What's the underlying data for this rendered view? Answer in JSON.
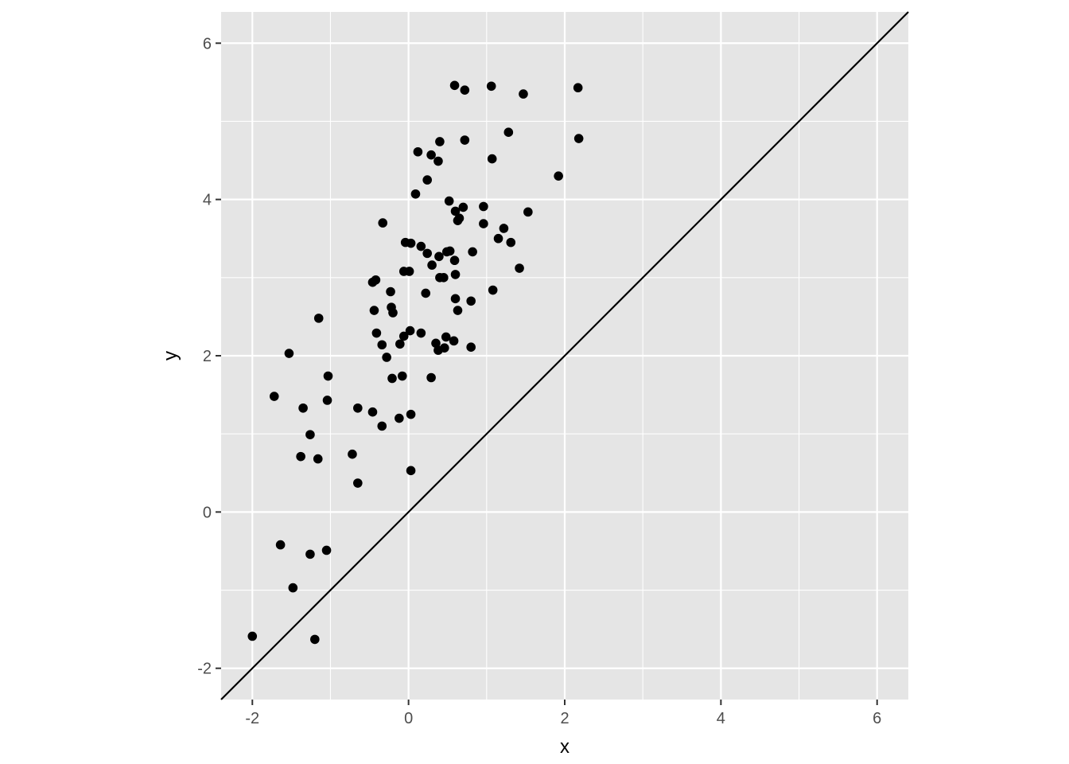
{
  "chart_data": {
    "type": "scatter",
    "title": "",
    "xlabel": "x",
    "ylabel": "y",
    "xlim": [
      -2.4,
      6.4
    ],
    "ylim": [
      -2.4,
      6.4
    ],
    "x_ticks": [
      -2,
      0,
      2,
      4,
      6
    ],
    "y_ticks": [
      -2,
      0,
      2,
      4,
      6
    ],
    "x_tick_labels": [
      "-2",
      "0",
      "2",
      "4",
      "6"
    ],
    "y_tick_labels": [
      "-2",
      "0",
      "2",
      "4",
      "6"
    ],
    "grid": true,
    "legend": "none",
    "colors": {
      "panel": "#e5e5e5",
      "grid": "#ffffff",
      "points": "#000000",
      "line": "#000000",
      "tick_text": "#4d4d4d"
    },
    "reference_line": {
      "type": "abline",
      "slope": 1,
      "intercept": 0
    },
    "points": [
      [
        -2.0,
        -1.59
      ],
      [
        -1.2,
        -1.63
      ],
      [
        -1.48,
        -0.97
      ],
      [
        -1.64,
        -0.42
      ],
      [
        -1.26,
        -0.54
      ],
      [
        -1.05,
        -0.49
      ],
      [
        -1.72,
        1.48
      ],
      [
        -1.35,
        1.33
      ],
      [
        -1.53,
        2.03
      ],
      [
        -1.15,
        2.48
      ],
      [
        -1.26,
        0.99
      ],
      [
        -1.38,
        0.71
      ],
      [
        -1.16,
        0.68
      ],
      [
        -1.04,
        1.43
      ],
      [
        -1.03,
        1.74
      ],
      [
        -0.72,
        0.74
      ],
      [
        -0.65,
        0.37
      ],
      [
        -0.65,
        1.33
      ],
      [
        -0.46,
        1.28
      ],
      [
        -0.34,
        1.1
      ],
      [
        -0.44,
        2.58
      ],
      [
        -0.41,
        2.29
      ],
      [
        -0.34,
        2.14
      ],
      [
        -0.28,
        1.98
      ],
      [
        -0.21,
        1.71
      ],
      [
        -0.22,
        2.62
      ],
      [
        -0.2,
        2.55
      ],
      [
        -0.23,
        2.82
      ],
      [
        -0.46,
        2.94
      ],
      [
        -0.42,
        2.97
      ],
      [
        -0.33,
        3.7
      ],
      [
        -0.12,
        1.2
      ],
      [
        -0.11,
        2.15
      ],
      [
        -0.08,
        1.74
      ],
      [
        -0.06,
        2.25
      ],
      [
        0.02,
        2.32
      ],
      [
        0.03,
        1.25
      ],
      [
        0.03,
        0.53
      ],
      [
        -0.06,
        3.08
      ],
      [
        0.01,
        3.08
      ],
      [
        -0.04,
        3.45
      ],
      [
        0.03,
        3.44
      ],
      [
        0.16,
        3.4
      ],
      [
        0.24,
        3.31
      ],
      [
        0.3,
        3.16
      ],
      [
        0.22,
        2.8
      ],
      [
        0.16,
        2.29
      ],
      [
        0.29,
        1.72
      ],
      [
        0.35,
        2.16
      ],
      [
        0.38,
        2.07
      ],
      [
        0.46,
        2.1
      ],
      [
        0.48,
        2.24
      ],
      [
        0.58,
        2.19
      ],
      [
        0.8,
        2.11
      ],
      [
        0.39,
        3.27
      ],
      [
        0.49,
        3.33
      ],
      [
        0.53,
        3.34
      ],
      [
        0.4,
        3.0
      ],
      [
        0.45,
        3.0
      ],
      [
        0.59,
        3.22
      ],
      [
        0.6,
        3.04
      ],
      [
        0.6,
        2.73
      ],
      [
        0.63,
        2.58
      ],
      [
        0.8,
        2.7
      ],
      [
        0.82,
        3.33
      ],
      [
        0.96,
        3.69
      ],
      [
        0.96,
        3.91
      ],
      [
        0.7,
        3.9
      ],
      [
        0.6,
        3.85
      ],
      [
        0.63,
        3.73
      ],
      [
        0.65,
        3.76
      ],
      [
        0.52,
        3.98
      ],
      [
        0.09,
        4.07
      ],
      [
        0.24,
        4.25
      ],
      [
        0.29,
        4.57
      ],
      [
        0.38,
        4.49
      ],
      [
        0.12,
        4.61
      ],
      [
        0.4,
        4.74
      ],
      [
        0.72,
        4.76
      ],
      [
        0.59,
        5.46
      ],
      [
        0.72,
        5.4
      ],
      [
        1.06,
        5.45
      ],
      [
        1.47,
        5.35
      ],
      [
        1.07,
        4.52
      ],
      [
        1.28,
        4.86
      ],
      [
        1.08,
        2.84
      ],
      [
        1.15,
        3.5
      ],
      [
        1.22,
        3.63
      ],
      [
        1.31,
        3.45
      ],
      [
        1.42,
        3.12
      ],
      [
        1.53,
        3.84
      ],
      [
        1.92,
        4.3
      ],
      [
        2.17,
        5.43
      ],
      [
        2.18,
        4.78
      ]
    ]
  }
}
